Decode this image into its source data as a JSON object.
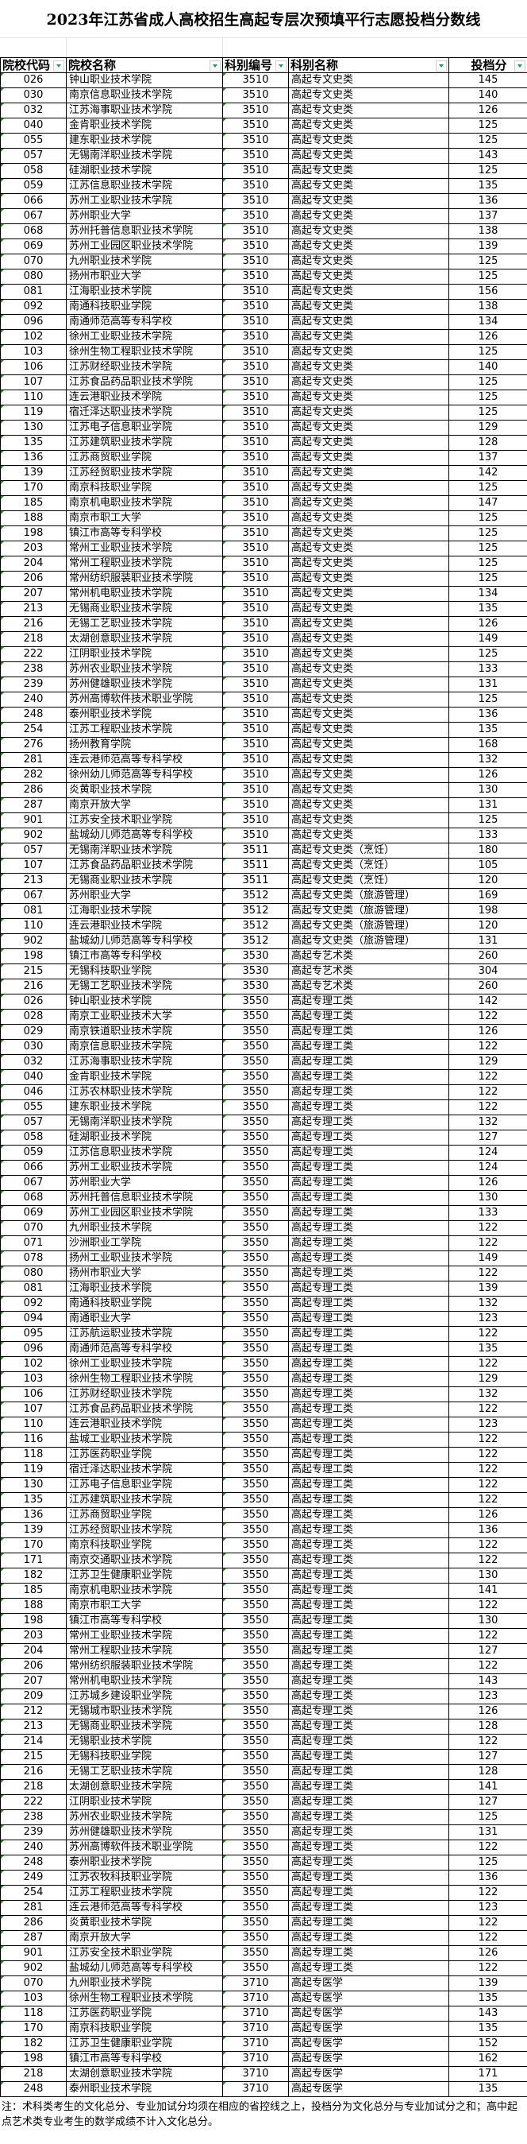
{
  "title": "2023年江苏省成人高校招生高起专层次预填平行志愿投档分数线",
  "columns": [
    "院校代码",
    "院校名称",
    "科别编号",
    "科别名称",
    "投档分"
  ],
  "colors": {
    "grid": "#000000",
    "marker": "#1a8a1a",
    "filter_arrow": "#1f9a5a"
  },
  "rows": [
    [
      "026",
      "钟山职业技术学院",
      "3510",
      "高起专文史类",
      "145"
    ],
    [
      "030",
      "南京信息职业技术学院",
      "3510",
      "高起专文史类",
      "140"
    ],
    [
      "032",
      "江苏海事职业技术学院",
      "3510",
      "高起专文史类",
      "126"
    ],
    [
      "040",
      "金肯职业技术学院",
      "3510",
      "高起专文史类",
      "125"
    ],
    [
      "055",
      "建东职业技术学院",
      "3510",
      "高起专文史类",
      "125"
    ],
    [
      "057",
      "无锡南洋职业技术学院",
      "3510",
      "高起专文史类",
      "143"
    ],
    [
      "058",
      "硅湖职业技术学院",
      "3510",
      "高起专文史类",
      "125"
    ],
    [
      "059",
      "江苏信息职业技术学院",
      "3510",
      "高起专文史类",
      "135"
    ],
    [
      "066",
      "苏州工业职业技术学院",
      "3510",
      "高起专文史类",
      "136"
    ],
    [
      "067",
      "苏州职业大学",
      "3510",
      "高起专文史类",
      "137"
    ],
    [
      "068",
      "苏州托普信息职业技术学院",
      "3510",
      "高起专文史类",
      "138"
    ],
    [
      "069",
      "苏州工业园区职业技术学院",
      "3510",
      "高起专文史类",
      "139"
    ],
    [
      "070",
      "九州职业技术学院",
      "3510",
      "高起专文史类",
      "125"
    ],
    [
      "080",
      "扬州市职业大学",
      "3510",
      "高起专文史类",
      "125"
    ],
    [
      "081",
      "江海职业技术学院",
      "3510",
      "高起专文史类",
      "156"
    ],
    [
      "092",
      "南通科技职业学院",
      "3510",
      "高起专文史类",
      "138"
    ],
    [
      "096",
      "南通师范高等专科学校",
      "3510",
      "高起专文史类",
      "134"
    ],
    [
      "102",
      "徐州工业职业技术学院",
      "3510",
      "高起专文史类",
      "126"
    ],
    [
      "103",
      "徐州生物工程职业技术学院",
      "3510",
      "高起专文史类",
      "125"
    ],
    [
      "106",
      "江苏财经职业技术学院",
      "3510",
      "高起专文史类",
      "140"
    ],
    [
      "107",
      "江苏食品药品职业技术学院",
      "3510",
      "高起专文史类",
      "125"
    ],
    [
      "110",
      "连云港职业技术学院",
      "3510",
      "高起专文史类",
      "125"
    ],
    [
      "119",
      "宿迁泽达职业技术学院",
      "3510",
      "高起专文史类",
      "125"
    ],
    [
      "130",
      "江苏电子信息职业学院",
      "3510",
      "高起专文史类",
      "129"
    ],
    [
      "135",
      "江苏建筑职业技术学院",
      "3510",
      "高起专文史类",
      "128"
    ],
    [
      "136",
      "江苏商贸职业学院",
      "3510",
      "高起专文史类",
      "137"
    ],
    [
      "139",
      "江苏经贸职业技术学院",
      "3510",
      "高起专文史类",
      "142"
    ],
    [
      "170",
      "南京科技职业学院",
      "3510",
      "高起专文史类",
      "125"
    ],
    [
      "185",
      "南京机电职业技术学院",
      "3510",
      "高起专文史类",
      "147"
    ],
    [
      "188",
      "南京市职工大学",
      "3510",
      "高起专文史类",
      "125"
    ],
    [
      "198",
      "镇江市高等专科学校",
      "3510",
      "高起专文史类",
      "125"
    ],
    [
      "203",
      "常州工业职业技术学院",
      "3510",
      "高起专文史类",
      "125"
    ],
    [
      "204",
      "常州工程职业技术学院",
      "3510",
      "高起专文史类",
      "125"
    ],
    [
      "206",
      "常州纺织服装职业技术学院",
      "3510",
      "高起专文史类",
      "125"
    ],
    [
      "207",
      "常州机电职业技术学院",
      "3510",
      "高起专文史类",
      "134"
    ],
    [
      "213",
      "无锡商业职业技术学院",
      "3510",
      "高起专文史类",
      "135"
    ],
    [
      "216",
      "无锡工艺职业技术学院",
      "3510",
      "高起专文史类",
      "126"
    ],
    [
      "218",
      "太湖创意职业技术学院",
      "3510",
      "高起专文史类",
      "149"
    ],
    [
      "222",
      "江阴职业技术学院",
      "3510",
      "高起专文史类",
      "125"
    ],
    [
      "238",
      "苏州农业职业技术学院",
      "3510",
      "高起专文史类",
      "133"
    ],
    [
      "239",
      "苏州健雄职业技术学院",
      "3510",
      "高起专文史类",
      "131"
    ],
    [
      "240",
      "苏州高博软件技术职业学院",
      "3510",
      "高起专文史类",
      "125"
    ],
    [
      "248",
      "泰州职业技术学院",
      "3510",
      "高起专文史类",
      "136"
    ],
    [
      "254",
      "江苏工程职业技术学院",
      "3510",
      "高起专文史类",
      "135"
    ],
    [
      "276",
      "扬州教育学院",
      "3510",
      "高起专文史类",
      "168"
    ],
    [
      "281",
      "连云港师范高等专科学校",
      "3510",
      "高起专文史类",
      "132"
    ],
    [
      "282",
      "徐州幼儿师范高等专科学校",
      "3510",
      "高起专文史类",
      "126"
    ],
    [
      "286",
      "炎黄职业技术学院",
      "3510",
      "高起专文史类",
      "130"
    ],
    [
      "287",
      "南京开放大学",
      "3510",
      "高起专文史类",
      "131"
    ],
    [
      "901",
      "江苏安全技术职业学院",
      "3510",
      "高起专文史类",
      "125"
    ],
    [
      "902",
      "盐城幼儿师范高等专科学校",
      "3510",
      "高起专文史类",
      "133"
    ],
    [
      "057",
      "无锡南洋职业技术学院",
      "3511",
      "高起专文史类（烹饪）",
      "180"
    ],
    [
      "107",
      "江苏食品药品职业技术学院",
      "3511",
      "高起专文史类（烹饪）",
      "105"
    ],
    [
      "213",
      "无锡商业职业技术学院",
      "3511",
      "高起专文史类（烹饪）",
      "120"
    ],
    [
      "067",
      "苏州职业大学",
      "3512",
      "高起专文史类（旅游管理）",
      "169"
    ],
    [
      "081",
      "江海职业技术学院",
      "3512",
      "高起专文史类（旅游管理）",
      "198"
    ],
    [
      "110",
      "连云港职业技术学院",
      "3512",
      "高起专文史类（旅游管理）",
      "120"
    ],
    [
      "902",
      "盐城幼儿师范高等专科学校",
      "3512",
      "高起专文史类（旅游管理）",
      "131"
    ],
    [
      "198",
      "镇江市高等专科学校",
      "3530",
      "高起专艺术类",
      "260"
    ],
    [
      "215",
      "无锡科技职业学院",
      "3530",
      "高起专艺术类",
      "304"
    ],
    [
      "216",
      "无锡工艺职业技术学院",
      "3530",
      "高起专艺术类",
      "260"
    ],
    [
      "026",
      "钟山职业技术学院",
      "3550",
      "高起专理工类",
      "142"
    ],
    [
      "028",
      "南京工业职业技术大学",
      "3550",
      "高起专理工类",
      "122"
    ],
    [
      "029",
      "南京铁道职业技术学院",
      "3550",
      "高起专理工类",
      "126"
    ],
    [
      "030",
      "南京信息职业技术学院",
      "3550",
      "高起专理工类",
      "122"
    ],
    [
      "032",
      "江苏海事职业技术学院",
      "3550",
      "高起专理工类",
      "129"
    ],
    [
      "040",
      "金肯职业技术学院",
      "3550",
      "高起专理工类",
      "122"
    ],
    [
      "046",
      "江苏农林职业技术学院",
      "3550",
      "高起专理工类",
      "122"
    ],
    [
      "055",
      "建东职业技术学院",
      "3550",
      "高起专理工类",
      "122"
    ],
    [
      "057",
      "无锡南洋职业技术学院",
      "3550",
      "高起专理工类",
      "132"
    ],
    [
      "058",
      "硅湖职业技术学院",
      "3550",
      "高起专理工类",
      "127"
    ],
    [
      "059",
      "江苏信息职业技术学院",
      "3550",
      "高起专理工类",
      "124"
    ],
    [
      "066",
      "苏州工业职业技术学院",
      "3550",
      "高起专理工类",
      "124"
    ],
    [
      "067",
      "苏州职业大学",
      "3550",
      "高起专理工类",
      "126"
    ],
    [
      "068",
      "苏州托普信息职业技术学院",
      "3550",
      "高起专理工类",
      "130"
    ],
    [
      "069",
      "苏州工业园区职业技术学院",
      "3550",
      "高起专理工类",
      "133"
    ],
    [
      "070",
      "九州职业技术学院",
      "3550",
      "高起专理工类",
      "122"
    ],
    [
      "071",
      "沙洲职业工学院",
      "3550",
      "高起专理工类",
      "122"
    ],
    [
      "078",
      "扬州工业职业技术学院",
      "3550",
      "高起专理工类",
      "149"
    ],
    [
      "080",
      "扬州市职业大学",
      "3550",
      "高起专理工类",
      "122"
    ],
    [
      "081",
      "江海职业技术学院",
      "3550",
      "高起专理工类",
      "139"
    ],
    [
      "092",
      "南通科技职业学院",
      "3550",
      "高起专理工类",
      "132"
    ],
    [
      "094",
      "南通职业大学",
      "3550",
      "高起专理工类",
      "123"
    ],
    [
      "095",
      "江苏航运职业技术学院",
      "3550",
      "高起专理工类",
      "122"
    ],
    [
      "096",
      "南通师范高等专科学校",
      "3550",
      "高起专理工类",
      "135"
    ],
    [
      "102",
      "徐州工业职业技术学院",
      "3550",
      "高起专理工类",
      "122"
    ],
    [
      "103",
      "徐州生物工程职业技术学院",
      "3550",
      "高起专理工类",
      "129"
    ],
    [
      "106",
      "江苏财经职业技术学院",
      "3550",
      "高起专理工类",
      "132"
    ],
    [
      "107",
      "江苏食品药品职业技术学院",
      "3550",
      "高起专理工类",
      "122"
    ],
    [
      "110",
      "连云港职业技术学院",
      "3550",
      "高起专理工类",
      "123"
    ],
    [
      "116",
      "盐城工业职业技术学院",
      "3550",
      "高起专理工类",
      "122"
    ],
    [
      "118",
      "江苏医药职业学院",
      "3550",
      "高起专理工类",
      "122"
    ],
    [
      "119",
      "宿迁泽达职业技术学院",
      "3550",
      "高起专理工类",
      "122"
    ],
    [
      "130",
      "江苏电子信息职业学院",
      "3550",
      "高起专理工类",
      "122"
    ],
    [
      "135",
      "江苏建筑职业技术学院",
      "3550",
      "高起专理工类",
      "122"
    ],
    [
      "136",
      "江苏商贸职业学院",
      "3550",
      "高起专理工类",
      "126"
    ],
    [
      "139",
      "江苏经贸职业技术学院",
      "3550",
      "高起专理工类",
      "136"
    ],
    [
      "170",
      "南京科技职业学院",
      "3550",
      "高起专理工类",
      "122"
    ],
    [
      "171",
      "南京交通职业技术学院",
      "3550",
      "高起专理工类",
      "122"
    ],
    [
      "182",
      "江苏卫生健康职业学院",
      "3550",
      "高起专理工类",
      "130"
    ],
    [
      "185",
      "南京机电职业技术学院",
      "3550",
      "高起专理工类",
      "141"
    ],
    [
      "188",
      "南京市职工大学",
      "3550",
      "高起专理工类",
      "122"
    ],
    [
      "198",
      "镇江市高等专科学校",
      "3550",
      "高起专理工类",
      "130"
    ],
    [
      "203",
      "常州工业职业技术学院",
      "3550",
      "高起专理工类",
      "122"
    ],
    [
      "204",
      "常州工程职业技术学院",
      "3550",
      "高起专理工类",
      "127"
    ],
    [
      "206",
      "常州纺织服装职业技术学院",
      "3550",
      "高起专理工类",
      "122"
    ],
    [
      "207",
      "常州机电职业技术学院",
      "3550",
      "高起专理工类",
      "143"
    ],
    [
      "209",
      "江苏城乡建设职业学院",
      "3550",
      "高起专理工类",
      "123"
    ],
    [
      "212",
      "无锡城市职业技术学院",
      "3550",
      "高起专理工类",
      "126"
    ],
    [
      "213",
      "无锡商业职业技术学院",
      "3550",
      "高起专理工类",
      "128"
    ],
    [
      "214",
      "无锡职业技术学院",
      "3550",
      "高起专理工类",
      "122"
    ],
    [
      "215",
      "无锡科技职业学院",
      "3550",
      "高起专理工类",
      "127"
    ],
    [
      "216",
      "无锡工艺职业技术学院",
      "3550",
      "高起专理工类",
      "128"
    ],
    [
      "218",
      "太湖创意职业技术学院",
      "3550",
      "高起专理工类",
      "141"
    ],
    [
      "222",
      "江阴职业技术学院",
      "3550",
      "高起专理工类",
      "127"
    ],
    [
      "238",
      "苏州农业职业技术学院",
      "3550",
      "高起专理工类",
      "125"
    ],
    [
      "239",
      "苏州健雄职业技术学院",
      "3550",
      "高起专理工类",
      "131"
    ],
    [
      "240",
      "苏州高博软件技术职业学院",
      "3550",
      "高起专理工类",
      "122"
    ],
    [
      "248",
      "泰州职业技术学院",
      "3550",
      "高起专理工类",
      "125"
    ],
    [
      "249",
      "江苏农牧科技职业学院",
      "3550",
      "高起专理工类",
      "136"
    ],
    [
      "254",
      "江苏工程职业技术学院",
      "3550",
      "高起专理工类",
      "122"
    ],
    [
      "281",
      "连云港师范高等专科学校",
      "3550",
      "高起专理工类",
      "123"
    ],
    [
      "286",
      "炎黄职业技术学院",
      "3550",
      "高起专理工类",
      "122"
    ],
    [
      "287",
      "南京开放大学",
      "3550",
      "高起专理工类",
      "122"
    ],
    [
      "901",
      "江苏安全技术职业学院",
      "3550",
      "高起专理工类",
      "126"
    ],
    [
      "902",
      "盐城幼儿师范高等专科学校",
      "3550",
      "高起专理工类",
      "122"
    ],
    [
      "070",
      "九州职业技术学院",
      "3710",
      "高起专医学",
      "139"
    ],
    [
      "103",
      "徐州生物工程职业技术学院",
      "3710",
      "高起专医学",
      "135"
    ],
    [
      "118",
      "江苏医药职业学院",
      "3710",
      "高起专医学",
      "143"
    ],
    [
      "170",
      "南京科技职业学院",
      "3710",
      "高起专医学",
      "135"
    ],
    [
      "182",
      "江苏卫生健康职业学院",
      "3710",
      "高起专医学",
      "152"
    ],
    [
      "198",
      "镇江市高等专科学校",
      "3710",
      "高起专医学",
      "162"
    ],
    [
      "218",
      "太湖创意职业技术学院",
      "3710",
      "高起专医学",
      "171"
    ],
    [
      "248",
      "泰州职业技术学院",
      "3710",
      "高起专医学",
      "135"
    ]
  ],
  "note": "注：术科类考生的文化总分、专业加试分均须在相应的省控线之上，投档分为文化总分与专业加试分之和；高中起点艺术类专业考生的数学成绩不计入文化总分。"
}
